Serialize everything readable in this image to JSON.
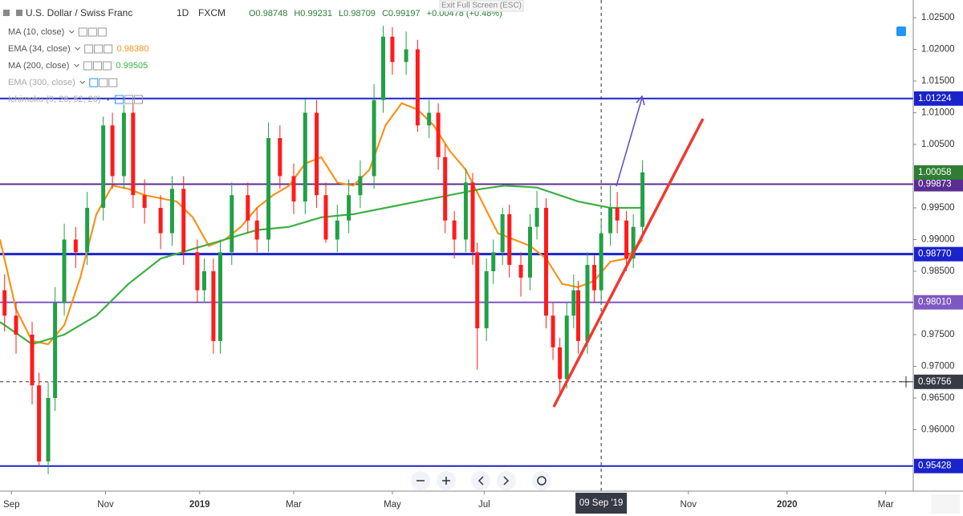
{
  "chart_data": {
    "type": "candlestick",
    "symbol": "U.S. Dollar / Swiss Franc",
    "interval": "1D",
    "source": "FXCM",
    "ohlc_texts": [
      "O0.98748",
      "H0.99231",
      "L0.98709",
      "C0.99197",
      "+0.00478 (+0.48%)"
    ],
    "exit_text": "Exit Full Screen (ESC)",
    "up_color": "#22a046",
    "down_color": "#ff1b1b",
    "xlim": [
      -5,
      393
    ],
    "xticks": [
      {
        "value": 0,
        "label": "Sep"
      },
      {
        "value": 41,
        "label": "Nov"
      },
      {
        "value": 82,
        "label": "2019"
      },
      {
        "value": 123,
        "label": "Mar"
      },
      {
        "value": 166,
        "label": "May"
      },
      {
        "value": 206,
        "label": "Jul"
      },
      {
        "value": 295,
        "label": "Nov"
      },
      {
        "value": 338,
        "label": "2020"
      },
      {
        "value": 381,
        "label": "Mar"
      }
    ],
    "ylim": [
      0.95032,
      1.02778
    ],
    "yticks": [
      {
        "value": 1.025,
        "label": "1.02500"
      },
      {
        "value": 1.02,
        "label": "1.02000"
      },
      {
        "value": 1.015,
        "label": "1.01500"
      },
      {
        "value": 1.01,
        "label": "1.01000"
      },
      {
        "value": 1.005,
        "label": "1.00500"
      },
      {
        "value": 0.995,
        "label": "0.99500"
      },
      {
        "value": 0.99,
        "label": "0.99000"
      },
      {
        "value": 0.985,
        "label": "0.98500"
      },
      {
        "value": 0.975,
        "label": "0.97500"
      },
      {
        "value": 0.97,
        "label": "0.97000"
      },
      {
        "value": 0.965,
        "label": "0.96500"
      },
      {
        "value": 0.96,
        "label": "0.96000"
      }
    ],
    "x": [
      -3,
      2,
      9,
      12,
      16,
      19,
      23,
      28,
      33,
      40,
      44,
      49,
      53,
      58,
      65,
      70,
      75,
      81,
      84,
      88,
      91,
      96,
      103,
      107,
      112,
      117,
      123,
      128,
      133,
      137,
      142,
      147,
      152,
      158,
      162,
      166,
      172,
      177,
      182,
      186,
      189,
      193,
      198,
      201,
      203,
      207,
      210,
      214,
      217,
      222,
      226,
      229,
      233,
      236,
      239,
      242,
      245,
      247,
      251,
      254,
      257,
      261,
      264,
      268,
      271,
      275
    ],
    "open": [
      0.982,
      0.978,
      0.975,
      0.967,
      0.955,
      0.965,
      0.98,
      0.99,
      0.988,
      0.995,
      1.008,
      1.0,
      1.01,
      0.997,
      0.995,
      0.991,
      0.998,
      0.988,
      0.982,
      0.985,
      0.974,
      0.988,
      0.997,
      0.993,
      0.99,
      1.006,
      1.0,
      0.996,
      1.01,
      0.997,
      0.99,
      0.993,
      0.997,
      1.0,
      1.012,
      1.022,
      1.018,
      1.02,
      1.008,
      1.01,
      1.003,
      0.993,
      0.99,
      0.999,
      0.988,
      0.976,
      0.985,
      0.988,
      0.994,
      0.986,
      0.984,
      0.992,
      0.995,
      0.978,
      0.973,
      0.968,
      0.978,
      0.982,
      0.974,
      0.986,
      0.982,
      0.991,
      0.995,
      0.993,
      0.987,
      0.992
    ],
    "high": [
      0.9845,
      0.98,
      0.977,
      0.969,
      0.9675,
      0.9825,
      0.9925,
      0.992,
      0.9975,
      1.0094,
      1.01,
      1.0113,
      1.0115,
      0.9995,
      0.997,
      1.0,
      1.0,
      0.99,
      0.987,
      0.987,
      0.99,
      0.999,
      0.999,
      0.995,
      1.0085,
      1.008,
      1.002,
      1.0122,
      1.012,
      0.999,
      0.9955,
      0.9995,
      1.0025,
      1.0145,
      1.0237,
      1.0235,
      1.0228,
      1.0215,
      1.012,
      1.0115,
      1.005,
      0.9945,
      1.0012,
      1.0005,
      0.9895,
      0.987,
      0.99,
      0.995,
      0.9955,
      0.988,
      0.994,
      0.9977,
      0.9965,
      0.98,
      0.9745,
      0.98,
      0.9845,
      0.9835,
      0.988,
      0.9875,
      0.993,
      0.9985,
      0.9975,
      0.9945,
      0.994,
      1.0025
    ],
    "low": [
      0.9755,
      0.972,
      0.964,
      0.9543,
      0.953,
      0.963,
      0.978,
      0.9855,
      0.986,
      0.993,
      0.998,
      0.998,
      0.995,
      0.9925,
      0.9885,
      0.989,
      0.986,
      0.98,
      0.98,
      0.972,
      0.972,
      0.986,
      0.991,
      0.988,
      0.988,
      0.998,
      0.994,
      0.994,
      0.995,
      0.9895,
      0.988,
      0.991,
      0.995,
      0.998,
      1.01,
      1.016,
      1.016,
      1.007,
      1.006,
      1.001,
      0.991,
      0.987,
      0.988,
      0.986,
      0.9695,
      0.974,
      0.983,
      0.986,
      0.984,
      0.981,
      0.982,
      0.99,
      0.976,
      0.971,
      0.9658,
      0.9665,
      0.976,
      0.972,
      0.972,
      0.98,
      0.98,
      0.989,
      0.991,
      0.985,
      0.9855,
      0.9905
    ],
    "close": [
      0.978,
      0.975,
      0.967,
      0.955,
      0.965,
      0.98,
      0.99,
      0.988,
      0.995,
      1.008,
      1.0,
      1.01,
      0.997,
      0.995,
      0.991,
      0.998,
      0.988,
      0.982,
      0.985,
      0.974,
      0.988,
      0.997,
      0.993,
      0.99,
      1.006,
      1.0,
      0.996,
      1.01,
      0.997,
      0.99,
      0.993,
      0.997,
      1.0,
      1.012,
      1.022,
      1.018,
      1.02,
      1.008,
      1.01,
      1.003,
      0.993,
      0.99,
      0.999,
      0.988,
      0.976,
      0.985,
      0.988,
      0.994,
      0.986,
      0.984,
      0.992,
      0.995,
      0.978,
      0.973,
      0.968,
      0.978,
      0.982,
      0.974,
      0.986,
      0.982,
      0.991,
      0.995,
      0.993,
      0.987,
      0.992,
      1.0006
    ],
    "indicators": [
      {
        "name": "MA (10, close)",
        "faded": false
      },
      {
        "name": "EMA (34, close)",
        "value": "0.98380",
        "color": "#f7931a",
        "faded": false,
        "x": [
          -5,
          2,
          9,
          16,
          23,
          30,
          37,
          44,
          51,
          58,
          65,
          72,
          79,
          86,
          93,
          100,
          107,
          114,
          121,
          128,
          135,
          142,
          149,
          156,
          163,
          170,
          177,
          184,
          191,
          198,
          205,
          212,
          219,
          226,
          233,
          240,
          247,
          254,
          261,
          268,
          275
        ],
        "values": [
          0.99,
          0.979,
          0.974,
          0.9735,
          0.9765,
          0.984,
          0.994,
          0.9985,
          0.998,
          0.997,
          0.9965,
          0.996,
          0.9935,
          0.989,
          0.99,
          0.992,
          0.995,
          0.997,
          0.9985,
          1.002,
          1.003,
          0.999,
          0.9985,
          1.001,
          1.008,
          1.0115,
          1.0105,
          1.008,
          1.004,
          1.001,
          0.996,
          0.991,
          0.99,
          0.989,
          0.987,
          0.983,
          0.9825,
          0.9835,
          0.9865,
          0.987,
          0.99
        ]
      },
      {
        "name": "MA (200, close)",
        "value": "0.99505",
        "color": "#3cb043",
        "faded": false,
        "x": [
          -5,
          9,
          23,
          37,
          51,
          65,
          79,
          93,
          107,
          121,
          135,
          149,
          163,
          177,
          191,
          205,
          215,
          229,
          247,
          261,
          275
        ],
        "values": [
          0.977,
          0.9735,
          0.975,
          0.978,
          0.983,
          0.987,
          0.9885,
          0.99,
          0.9915,
          0.992,
          0.9935,
          0.994,
          0.995,
          0.996,
          0.997,
          0.998,
          0.9985,
          0.9982,
          0.996,
          0.995,
          0.995
        ]
      },
      {
        "name": "EMA (300, close)",
        "faded": true
      },
      {
        "name": "Ichimoku (9, 26, 52, 26)",
        "faded": true
      }
    ],
    "levels": [
      {
        "value": 1.01224,
        "label": "1.01224",
        "color": "#1a23c9"
      },
      {
        "value": 0.99873,
        "label": "0.99873",
        "color": "#5a2d91"
      },
      {
        "value": 0.9877,
        "label": "0.98770",
        "color": "#1a23c9"
      },
      {
        "value": 0.9801,
        "label": "0.98010",
        "color": "#7e57c2"
      },
      {
        "value": 0.95428,
        "label": "0.95428",
        "color": "#1a23c9"
      }
    ],
    "last_price": {
      "value": 1.00058,
      "label": "1.00058",
      "color": "#2f7d32"
    },
    "crosshair": {
      "x": 257,
      "x_label": "09 Sep '19",
      "y": 0.96756,
      "y_label": "0.96756"
    }
  }
}
